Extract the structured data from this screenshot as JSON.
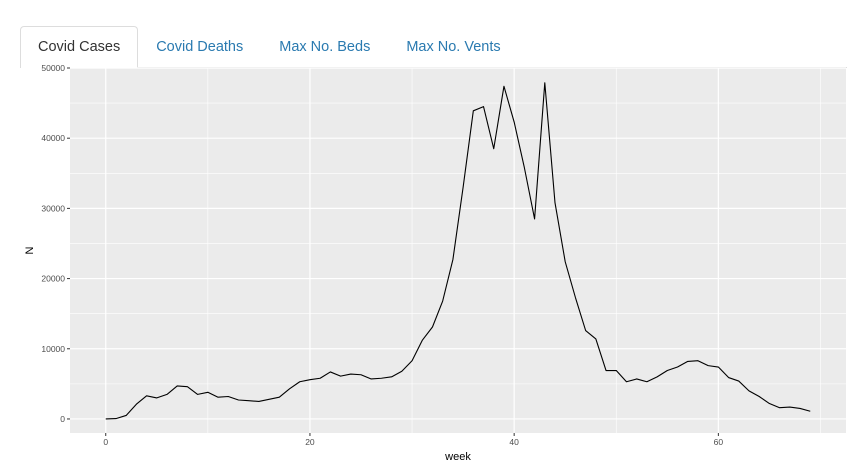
{
  "tabs": [
    {
      "label": "Covid Cases",
      "active": true
    },
    {
      "label": "Covid Deaths",
      "active": false
    },
    {
      "label": "Max No. Beds",
      "active": false
    },
    {
      "label": "Max No. Vents",
      "active": false
    }
  ],
  "colors": {
    "panel_background": "#ebebeb",
    "gridline": "#ffffff",
    "line": "#000000",
    "tab_link": "#2a7ab0"
  },
  "chart_data": {
    "type": "line",
    "xlabel": "week",
    "ylabel": "N",
    "xlim": [
      -3.5,
      72.5
    ],
    "ylim": [
      -2000,
      50000
    ],
    "xticks": [
      0,
      20,
      40,
      60
    ],
    "yticks": [
      0,
      10000,
      20000,
      30000,
      40000,
      50000
    ],
    "grid": true,
    "series": [
      {
        "x": [
          0,
          1,
          2,
          3,
          4,
          5,
          6,
          7,
          8,
          9,
          10,
          11,
          12,
          13,
          14,
          15,
          16,
          17,
          18,
          19,
          20,
          21,
          22,
          23,
          24,
          25,
          26,
          27,
          28,
          29,
          30,
          31,
          32,
          33,
          34,
          35,
          36,
          37,
          38,
          39,
          40,
          41,
          42,
          43,
          44,
          45,
          46,
          47,
          48,
          49,
          50,
          51,
          52,
          53,
          54,
          55,
          56,
          57,
          58,
          59,
          60,
          61,
          62,
          63,
          64,
          65,
          66,
          67,
          68,
          69
        ],
        "y": [
          0,
          50,
          500,
          2100,
          3300,
          3000,
          3500,
          4700,
          4600,
          3500,
          3800,
          3100,
          3200,
          2700,
          2600,
          2500,
          2800,
          3100,
          4300,
          5300,
          5600,
          5800,
          6700,
          6100,
          6400,
          6300,
          5700,
          5800,
          6000,
          6800,
          8300,
          11200,
          13100,
          16800,
          22700,
          33000,
          43900,
          44500,
          38500,
          47400,
          42300,
          35800,
          28500,
          47900,
          30800,
          22400,
          17300,
          12600,
          11400,
          6900,
          6900,
          5300,
          5700,
          5300,
          6000,
          6900,
          7400,
          8200,
          8300,
          7600,
          7400,
          5900,
          5400,
          4000,
          3200,
          2200,
          1600,
          1700,
          1500,
          1100
        ]
      }
    ]
  }
}
